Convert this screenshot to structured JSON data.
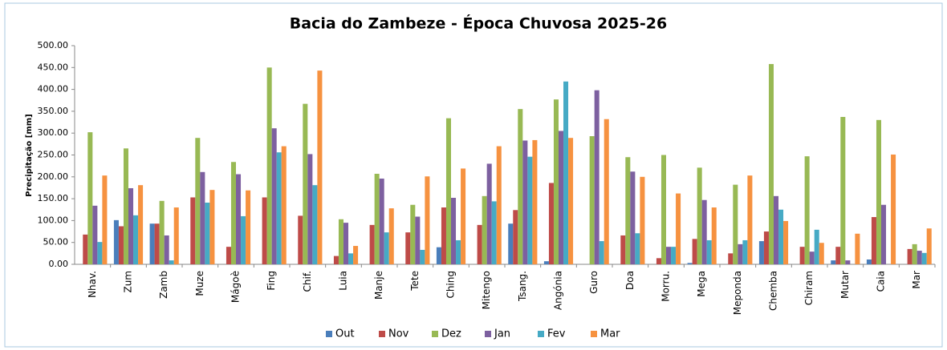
{
  "chart_data": {
    "type": "bar",
    "title": "Bacia do Zambeze - Época Chuvosa 2025-26",
    "y_label": "Precipitação [mm]",
    "categories": [
      "Nhav.",
      "Zum",
      "Zamb",
      "Muze",
      "Mágoè",
      "Fing",
      "Chif.",
      "Luia",
      "Manje",
      "Tete",
      "Ching",
      "Mitengo",
      "Tsang.",
      "Angónia",
      "Guro",
      "Doa",
      "Morru.",
      "Mega",
      "Meponda",
      "Chemba",
      "Chiram",
      "Mutar",
      "Caia",
      "Mar"
    ],
    "series": [
      {
        "name": "Out",
        "color": "#4a7ebb",
        "values": [
          0,
          101,
          93,
          0,
          0,
          0,
          0,
          0,
          0,
          0,
          39,
          0,
          93,
          7,
          0,
          0,
          0,
          3,
          0,
          53,
          0,
          9,
          11,
          0
        ]
      },
      {
        "name": "Nov",
        "color": "#be4b48",
        "values": [
          68,
          87,
          93,
          153,
          40,
          153,
          111,
          19,
          90,
          73,
          130,
          90,
          124,
          186,
          0,
          66,
          14,
          58,
          25,
          75,
          40,
          40,
          108,
          35
        ]
      },
      {
        "name": "Dez",
        "color": "#98b954",
        "values": [
          302,
          265,
          145,
          289,
          234,
          450,
          367,
          103,
          207,
          136,
          334,
          156,
          355,
          377,
          293,
          245,
          250,
          221,
          182,
          458,
          247,
          337,
          330,
          46
        ]
      },
      {
        "name": "Jan",
        "color": "#7d60a0",
        "values": [
          134,
          174,
          66,
          211,
          206,
          311,
          252,
          95,
          196,
          109,
          152,
          230,
          283,
          305,
          398,
          212,
          40,
          147,
          46,
          156,
          29,
          9,
          136,
          31
        ]
      },
      {
        "name": "Fev",
        "color": "#46aac5",
        "values": [
          51,
          112,
          9,
          141,
          110,
          256,
          181,
          25,
          73,
          33,
          55,
          144,
          246,
          418,
          53,
          71,
          40,
          55,
          55,
          125,
          79,
          0,
          0,
          26
        ]
      },
      {
        "name": "Mar",
        "color": "#f69240",
        "values": [
          203,
          181,
          130,
          170,
          169,
          270,
          443,
          42,
          128,
          201,
          219,
          270,
          284,
          289,
          332,
          200,
          162,
          130,
          203,
          99,
          49,
          70,
          251,
          82
        ]
      }
    ],
    "ylim": [
      0,
      500
    ],
    "yticks": [
      {
        "value": 0,
        "label": "0.00"
      },
      {
        "value": 50,
        "label": "50.00"
      },
      {
        "value": 100,
        "label": "100.00"
      },
      {
        "value": 150,
        "label": "150.00"
      },
      {
        "value": 200,
        "label": "200.00"
      },
      {
        "value": 250,
        "label": "250.00"
      },
      {
        "value": 300,
        "label": "300.00"
      },
      {
        "value": 350,
        "label": "350.00"
      },
      {
        "value": 400,
        "label": "400.00"
      },
      {
        "value": 450,
        "label": "450.00"
      },
      {
        "value": 500,
        "label": "500.00"
      }
    ],
    "grid": false,
    "legend": "bottom"
  }
}
